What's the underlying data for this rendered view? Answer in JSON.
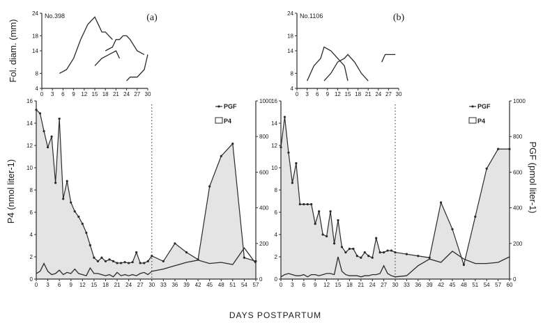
{
  "figure": {
    "xlabel": "DAYS POSTPARTUM",
    "foll_ylabel": "Fol. diam. (mm)",
    "p4_ylabel": "P4 (nmol liter-1)",
    "pgf_ylabel": "PGF (pmol liter-1)",
    "legend_pgf": "PGF",
    "legend_p4": "P4"
  },
  "chart_data": [
    {
      "panel": "a",
      "animal": "No.398",
      "type": "line",
      "follicle": {
        "xticks": [
          "0",
          "3",
          "6",
          "9",
          "12",
          "15",
          "18",
          "21",
          "24",
          "27",
          "30"
        ],
        "yticks": [
          "4",
          "8",
          "14",
          "18",
          "24"
        ],
        "xlim": [
          0,
          30
        ],
        "ylim": [
          4,
          24
        ],
        "series": [
          {
            "x": [
              5,
              7,
              9,
              11,
              13,
              15,
              16,
              17,
              18,
              19,
              20
            ],
            "y": [
              8,
              9,
              12,
              17,
              21,
              23,
              21,
              19,
              19,
              18,
              17
            ]
          },
          {
            "x": [
              18,
              20,
              21,
              22,
              23,
              24,
              25,
              27,
              29
            ],
            "y": [
              14,
              15,
              17,
              17,
              18,
              18,
              17,
              14,
              13
            ]
          },
          {
            "x": [
              15,
              17,
              19,
              21,
              22
            ],
            "y": [
              10,
              12,
              13,
              14,
              12
            ]
          },
          {
            "x": [
              24,
              25,
              27,
              29,
              30
            ],
            "y": [
              6,
              7,
              7,
              9,
              13
            ]
          }
        ]
      },
      "main": {
        "xticks": [
          "0",
          "3",
          "6",
          "9",
          "12",
          "15",
          "18",
          "21",
          "24",
          "27",
          "30",
          "33",
          "36",
          "39",
          "42",
          "45",
          "48",
          "51",
          "54",
          "57"
        ],
        "p4_ticks": [
          "0",
          "2",
          "4",
          "6",
          "8",
          "10",
          "12",
          "14",
          "16"
        ],
        "pgf_ticks": [
          "0",
          "200",
          "400",
          "600",
          "800",
          "1000"
        ],
        "p4_range": [
          0,
          16
        ],
        "pgf_range": [
          0,
          1000
        ],
        "p4": {
          "x": [
            0,
            1,
            2,
            3,
            4,
            5,
            6,
            7,
            8,
            9,
            10,
            11,
            12,
            13,
            14,
            15,
            16,
            17,
            18,
            19,
            20,
            21,
            22,
            23,
            24,
            25,
            26,
            27,
            28,
            29,
            30,
            33,
            36,
            39,
            42,
            45,
            48,
            51,
            54,
            57
          ],
          "y": [
            0.5,
            0.7,
            1.4,
            0.7,
            0.4,
            0.5,
            0.8,
            0.4,
            0.6,
            0.5,
            0.9,
            0.5,
            0.4,
            0.3,
            1.0,
            0.5,
            0.5,
            0.4,
            0.3,
            0.4,
            0.2,
            0.6,
            0.3,
            0.4,
            0.3,
            0.4,
            0.3,
            0.5,
            0.6,
            0.4,
            0.7,
            0.9,
            1.2,
            1.5,
            1.7,
            1.4,
            1.5,
            1.3,
            2.8,
            1.4
          ]
        },
        "pgf": {
          "x": [
            0,
            1,
            2,
            3,
            4,
            5,
            6,
            7,
            8,
            9,
            10,
            11,
            12,
            13,
            14,
            15,
            16,
            17,
            18,
            19,
            20,
            21,
            22,
            23,
            24,
            25,
            26,
            27,
            28,
            29,
            30,
            33,
            36,
            39,
            42,
            45,
            48,
            51,
            54,
            57
          ],
          "y": [
            950,
            930,
            830,
            740,
            800,
            540,
            900,
            450,
            550,
            430,
            380,
            350,
            310,
            260,
            190,
            120,
            100,
            120,
            100,
            110,
            100,
            90,
            90,
            95,
            90,
            95,
            150,
            90,
            90,
            100,
            130,
            100,
            200,
            150,
            110,
            520,
            690,
            760,
            120,
            100
          ]
        }
      }
    },
    {
      "panel": "b",
      "animal": "No.1106",
      "type": "line",
      "follicle": {
        "xticks": [
          "0",
          "3",
          "6",
          "9",
          "12",
          "15",
          "18",
          "21",
          "24",
          "27",
          "30"
        ],
        "yticks": [
          "4",
          "8",
          "14",
          "18",
          "24"
        ],
        "xlim": [
          0,
          30
        ],
        "ylim": [
          4,
          24
        ],
        "series": [
          {
            "x": [
              3,
              5,
              7,
              8,
              10,
              12,
              14,
              15
            ],
            "y": [
              6,
              10,
              12,
              15,
              14,
              12,
              10,
              6
            ]
          },
          {
            "x": [
              8,
              10,
              12,
              14,
              15,
              17,
              19,
              21
            ],
            "y": [
              6,
              8,
              11,
              12,
              13,
              11,
              8,
              6
            ]
          },
          {
            "x": [
              25,
              26,
              27,
              28,
              29
            ],
            "y": [
              11,
              13,
              13,
              13,
              13
            ]
          }
        ]
      },
      "main": {
        "xticks": [
          "0",
          "3",
          "6",
          "9",
          "12",
          "15",
          "18",
          "21",
          "24",
          "27",
          "30",
          "33",
          "36",
          "39",
          "42",
          "45",
          "48",
          "51",
          "54",
          "57",
          "60"
        ],
        "p4_ticks": [
          "0",
          "2",
          "4",
          "6",
          "8",
          "10",
          "12",
          "14",
          "16"
        ],
        "pgf_ticks": [
          "0",
          "200",
          "400",
          "600",
          "800",
          "1000"
        ],
        "p4_range": [
          0,
          16
        ],
        "pgf_range": [
          0,
          1000
        ],
        "p4": {
          "x": [
            0,
            1,
            2,
            3,
            4,
            5,
            6,
            7,
            8,
            9,
            10,
            11,
            12,
            13,
            14,
            15,
            16,
            17,
            18,
            19,
            20,
            21,
            22,
            23,
            24,
            25,
            26,
            27,
            28,
            29,
            30,
            33,
            36,
            39,
            42,
            45,
            48,
            51,
            54,
            57,
            60
          ],
          "y": [
            0.2,
            0.4,
            0.5,
            0.4,
            0.3,
            0.3,
            0.4,
            0.2,
            0.4,
            0.4,
            0.3,
            0.4,
            0.5,
            0.5,
            0.4,
            2.0,
            0.7,
            0.4,
            0.3,
            0.3,
            0.3,
            0.2,
            0.3,
            0.3,
            0.4,
            0.4,
            0.5,
            1.2,
            0.5,
            0.3,
            0.2,
            0.3,
            1.2,
            1.8,
            1.5,
            2.5,
            1.8,
            1.4,
            1.4,
            1.5,
            2.0
          ]
        },
        "pgf": {
          "x": [
            0,
            1,
            2,
            3,
            4,
            5,
            6,
            7,
            8,
            9,
            10,
            11,
            12,
            13,
            14,
            15,
            16,
            17,
            18,
            19,
            20,
            21,
            22,
            23,
            24,
            25,
            26,
            27,
            28,
            29,
            30,
            33,
            36,
            39,
            42,
            45,
            48,
            51,
            54,
            57,
            60
          ],
          "y": [
            740,
            910,
            710,
            540,
            650,
            420,
            420,
            420,
            420,
            310,
            380,
            250,
            240,
            380,
            200,
            330,
            180,
            150,
            170,
            170,
            130,
            120,
            150,
            130,
            120,
            230,
            150,
            150,
            160,
            160,
            150,
            140,
            130,
            120,
            430,
            280,
            80,
            350,
            620,
            730,
            730
          ]
        }
      }
    }
  ]
}
